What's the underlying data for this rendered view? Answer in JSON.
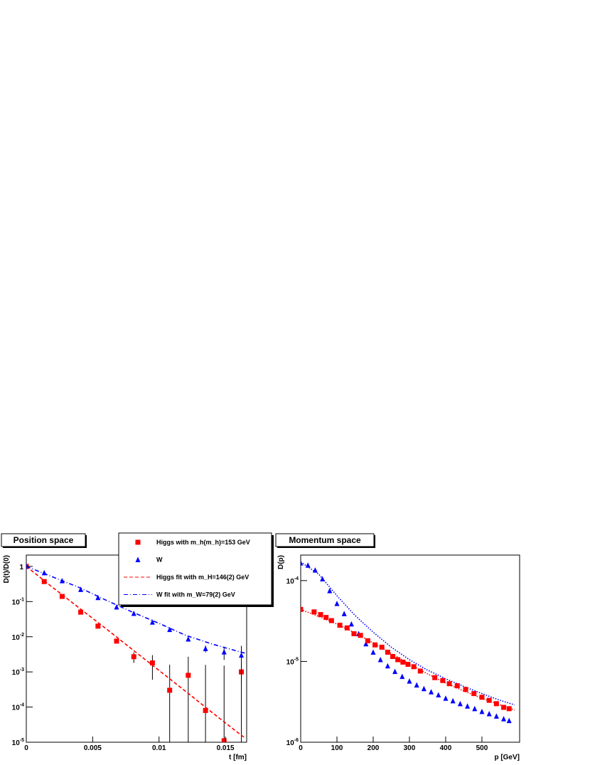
{
  "chart_data": [
    {
      "type": "scatter",
      "title": "Position space",
      "x_label": "t [fm]",
      "y_label": "D(t)/D(0)",
      "xlim": [
        0,
        0.0166
      ],
      "ylim": [
        1e-05,
        2.1
      ],
      "log_y": true,
      "xticks": [
        0,
        0.005,
        0.01,
        0.015
      ],
      "yticks": [
        {
          "value": 1e-05,
          "label": "10",
          "power": "-5"
        },
        {
          "value": 0.0001,
          "label": "10",
          "power": "-4"
        },
        {
          "value": 0.001,
          "label": "10",
          "power": "-3"
        },
        {
          "value": 0.01,
          "label": "10",
          "power": "-2"
        },
        {
          "value": 0.1,
          "label": "10",
          "power": "-1"
        },
        1
      ],
      "series": [
        {
          "name": "Higgs with m_h(m_h)=153 GeV",
          "color": "#ff0000",
          "marker": "square",
          "x": [
            0,
            0.00135,
            0.0027,
            0.0041,
            0.0054,
            0.0068,
            0.0081,
            0.0095,
            0.0108,
            0.0122,
            0.0135,
            0.0149,
            0.0162
          ],
          "values": [
            1,
            0.37,
            0.14,
            0.05,
            0.02,
            0.0075,
            0.0027,
            0.0018,
            0.0003,
            0.0008,
            8e-05,
            1.1e-05,
            0.001
          ],
          "errors": [
            0.02,
            0.01,
            0.005,
            0.002,
            0.001,
            0.0008,
            0.0009,
            0.0012,
            0.0013,
            0.0019,
            0.0015,
            0.0015,
            0.001
          ]
        },
        {
          "name": "W",
          "color": "#0000ff",
          "marker": "triangle",
          "x": [
            0,
            0.00135,
            0.0027,
            0.0041,
            0.0054,
            0.0068,
            0.0081,
            0.0095,
            0.0108,
            0.0122,
            0.0135,
            0.0149,
            0.0162
          ],
          "values": [
            1,
            0.66,
            0.39,
            0.22,
            0.13,
            0.07,
            0.046,
            0.026,
            0.016,
            0.0086,
            0.0046,
            0.0037,
            0.003
          ],
          "errors": [
            0.02,
            0.01,
            0.006,
            0.004,
            0.002,
            0.001,
            0.001,
            0.001,
            0.001,
            0.001,
            0.001,
            0.0015,
            0.0025
          ]
        },
        {
          "name": "Higgs fit with m_H=146(2) GeV",
          "color": "#ff0000",
          "dash": "dashed",
          "x": [
            0,
            0.002,
            0.004,
            0.006,
            0.008,
            0.01,
            0.012,
            0.014,
            0.016,
            0.0165
          ],
          "values": [
            1,
            0.25,
            0.065,
            0.017,
            0.0043,
            0.0011,
            0.00028,
            7e-05,
            1.8e-05,
            1.3e-05
          ]
        },
        {
          "name": "W fit with m_W=79(2) GeV",
          "color": "#0000ff",
          "dash": "dashdot",
          "x": [
            0,
            0.002,
            0.004,
            0.006,
            0.008,
            0.01,
            0.012,
            0.014,
            0.016,
            0.0165
          ],
          "values": [
            1,
            0.5,
            0.25,
            0.11,
            0.05,
            0.024,
            0.011,
            0.0062,
            0.0038,
            0.0034
          ]
        }
      ]
    },
    {
      "type": "scatter",
      "title": "Momentum space",
      "x_label": "p [GeV]",
      "y_label": "D(p)",
      "xlim": [
        0,
        604
      ],
      "ylim": [
        1e-06,
        0.000207
      ],
      "log_y": true,
      "xticks": [
        0,
        100,
        200,
        300,
        400,
        500
      ],
      "yticks": [
        {
          "value": 1e-06,
          "label": "10",
          "power": "-6"
        },
        {
          "value": 1e-05,
          "label": "10",
          "power": "-5"
        },
        {
          "value": 0.0001,
          "label": "10",
          "power": "-4"
        }
      ],
      "series": [
        {
          "color": "#ff0000",
          "dash": "dotted",
          "x": [
            0,
            50,
            100,
            150,
            200,
            250,
            300,
            350,
            400,
            450,
            500,
            550,
            590
          ],
          "values": [
            4.4e-05,
            3.6e-05,
            2.9e-05,
            2.25e-05,
            1.7e-05,
            1.25e-05,
            9.3e-06,
            7e-06,
            5.4e-06,
            4.3e-06,
            3.5e-06,
            2.9e-06,
            2.5e-06
          ]
        },
        {
          "color": "#0000ff",
          "dash": "dotted",
          "x": [
            0,
            50,
            100,
            150,
            200,
            250,
            300,
            350,
            400,
            450,
            500,
            550,
            590
          ],
          "values": [
            0.00017,
            0.00012,
            6.5e-05,
            3.7e-05,
            2.3e-05,
            1.5e-05,
            1.05e-05,
            7.8e-06,
            6.1e-06,
            4.9e-06,
            4e-06,
            3.3e-06,
            2.9e-06
          ]
        },
        {
          "color": "#0000ff",
          "marker": "triangle",
          "x": [
            0,
            20,
            40,
            60,
            80,
            100,
            120,
            140,
            160,
            180,
            200,
            220,
            240,
            260,
            280,
            300,
            320,
            340,
            360,
            380,
            400,
            420,
            440,
            460,
            480,
            500,
            520,
            540,
            560,
            575
          ],
          "values": [
            0.000165,
            0.000155,
            0.000135,
            0.000105,
            7.5e-05,
            5.2e-05,
            3.9e-05,
            2.9e-05,
            2.2e-05,
            1.65e-05,
            1.3e-05,
            1.05e-05,
            8.8e-06,
            7.5e-06,
            6.5e-06,
            5.7e-06,
            5.1e-06,
            4.6e-06,
            4.2e-06,
            3.85e-06,
            3.5e-06,
            3.25e-06,
            3e-06,
            2.8e-06,
            2.6e-06,
            2.4e-06,
            2.25e-06,
            2.1e-06,
            1.95e-06,
            1.85e-06
          ]
        },
        {
          "color": "#ff0000",
          "marker": "square",
          "x": [
            0,
            37,
            55,
            70,
            85,
            108,
            128,
            147,
            165,
            185,
            205,
            224,
            240,
            254,
            268,
            282,
            296,
            312,
            330,
            370,
            392,
            410,
            432,
            455,
            478,
            500,
            520,
            540,
            560,
            575
          ],
          "values": [
            4.4e-05,
            4.1e-05,
            3.8e-05,
            3.5e-05,
            3.2e-05,
            2.8e-05,
            2.6e-05,
            2.2e-05,
            2.1e-05,
            1.8e-05,
            1.6e-05,
            1.5e-05,
            1.3e-05,
            1.15e-05,
            1.05e-05,
            9.8e-06,
            9.2e-06,
            8.6e-06,
            7.6e-06,
            6.3e-06,
            5.8e-06,
            5.3e-06,
            5e-06,
            4.5e-06,
            4e-06,
            3.6e-06,
            3.3e-06,
            3e-06,
            2.7e-06,
            2.6e-06
          ]
        }
      ]
    }
  ]
}
